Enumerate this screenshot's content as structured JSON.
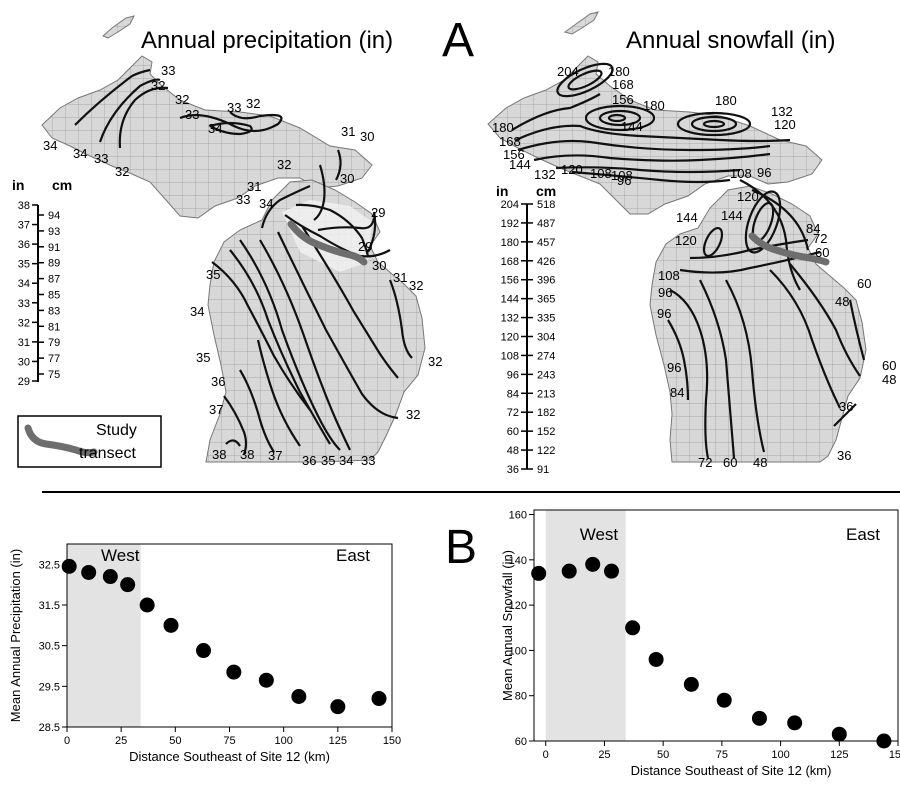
{
  "panels": {
    "a_label": "A",
    "b_label": "B"
  },
  "maps": {
    "precip": {
      "title": "Annual precipitation (in)",
      "isoline_labels": [
        "33",
        "32",
        "32",
        "33",
        "33",
        "32",
        "34",
        "34",
        "34",
        "33",
        "32",
        "31",
        "30",
        "31",
        "32",
        "30",
        "33",
        "34",
        "29",
        "29",
        "30",
        "31",
        "32",
        "35",
        "34",
        "35",
        "36",
        "37",
        "38",
        "38",
        "37",
        "36",
        "35",
        "34",
        "33",
        "32",
        "32"
      ]
    },
    "snow": {
      "title": "Annual snowfall (in)",
      "isoline_labels": [
        "204",
        "180",
        "168",
        "156",
        "180",
        "144",
        "180",
        "132",
        "120",
        "180",
        "168",
        "156",
        "144",
        "132",
        "120",
        "108",
        "108",
        "96",
        "108",
        "96",
        "84",
        "120",
        "144",
        "144",
        "120",
        "72",
        "60",
        "108",
        "96",
        "48",
        "60",
        "96",
        "96",
        "84",
        "72",
        "60",
        "48",
        "60",
        "48",
        "36",
        "36"
      ]
    }
  },
  "scales": {
    "precip": {
      "unit_in": "in",
      "unit_cm": "cm",
      "in_ticks": [
        "38",
        "37",
        "36",
        "35",
        "34",
        "33",
        "32",
        "31",
        "30",
        "29"
      ],
      "cm_ticks": [
        "94",
        "93",
        "91",
        "89",
        "87",
        "85",
        "83",
        "81",
        "79",
        "77",
        "75"
      ]
    },
    "snow": {
      "unit_in": "in",
      "unit_cm": "cm",
      "in_ticks": [
        "204",
        "192",
        "180",
        "168",
        "156",
        "144",
        "132",
        "120",
        "108",
        "96",
        "84",
        "72",
        "60",
        "48",
        "36"
      ],
      "cm_ticks": [
        "518",
        "487",
        "457",
        "426",
        "396",
        "365",
        "335",
        "304",
        "274",
        "243",
        "213",
        "182",
        "152",
        "122",
        "91"
      ]
    }
  },
  "legend": {
    "line1": "Study",
    "line2": "transect",
    "color": "#6e6e6e"
  },
  "colors": {
    "land": "#d8d8d8",
    "county_lines": "#9a9a9a",
    "shade": "#e3e3e3",
    "points": "#000000"
  },
  "chart_data": [
    {
      "type": "scatter",
      "xlabel": "Distance Southeast of Site 12 (km)",
      "ylabel": "Mean Annual Precipitation (in)",
      "region_labels": [
        "West",
        "East"
      ],
      "shaded_region_x": [
        0,
        34
      ],
      "xlim": [
        0,
        150
      ],
      "ylim": [
        28.5,
        33
      ],
      "xticks": [
        0,
        25,
        50,
        75,
        100,
        125,
        150
      ],
      "yticks": [
        28.5,
        29.5,
        30.5,
        31.5,
        32.5
      ],
      "ytick_labels": [
        "28.5",
        "29.5",
        "30.5",
        "31.5",
        "32.5"
      ],
      "x": [
        1,
        10,
        20,
        28,
        37,
        48,
        63,
        77,
        92,
        107,
        125,
        144
      ],
      "y": [
        32.45,
        32.3,
        32.2,
        32.0,
        31.5,
        31.0,
        30.38,
        29.85,
        29.65,
        29.25,
        29.0,
        29.2
      ]
    },
    {
      "type": "scatter",
      "xlabel": "Distance Southeast of Site 12 (km)",
      "ylabel": "Mean Annual Snowfall (in)",
      "region_labels": [
        "West",
        "East"
      ],
      "shaded_region_x": [
        0,
        34
      ],
      "xlim": [
        -5,
        150
      ],
      "ylim": [
        60,
        162
      ],
      "xticks": [
        0,
        25,
        50,
        75,
        100,
        125,
        150
      ],
      "yticks": [
        60,
        80,
        100,
        120,
        140,
        160
      ],
      "ytick_labels": [
        "60",
        "80",
        "100",
        "120",
        "140",
        "160"
      ],
      "x": [
        -3,
        10,
        20,
        28,
        37,
        47,
        62,
        76,
        91,
        106,
        125,
        144
      ],
      "y": [
        134,
        135,
        138,
        135,
        110,
        96,
        85,
        78,
        70,
        68,
        63,
        60
      ]
    }
  ]
}
